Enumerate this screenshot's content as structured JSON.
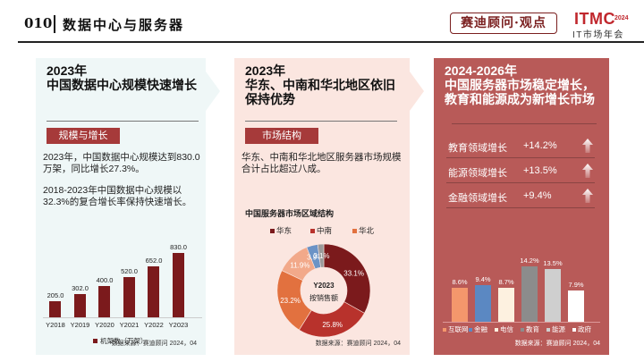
{
  "header": {
    "number": "010",
    "title": "数据中心与服务器",
    "brand": "赛迪顾问·观点",
    "logo": "ITMC",
    "logo_year": "2024",
    "logo_sub": "IT市场年会"
  },
  "panel1": {
    "title_line1": "2023年",
    "title_line2": "中国数据中心规模快速增长",
    "tag": "规模与增长",
    "para1": "2023年，中国数据中心规模达到830.0万架，同比增长27.3%。",
    "para2": "2018-2023年中国数据中心规模以32.3%的复合增长率保持快速增长。",
    "source": "数据来源：赛迪顾问 2024，04"
  },
  "panel2": {
    "title_line1": "2023年",
    "title_line2": "华东、中南和华北地区依旧",
    "title_line3": "保持优势",
    "tag": "市场结构",
    "para1": "华东、中南和华北地区服务器市场规模合计占比超过八成。",
    "chart_title": "中国服务器市场区域结构",
    "center_line1": "Y2023",
    "center_line2": "按销售额",
    "source": "数据来源：赛迪顾问 2024，04"
  },
  "panel3": {
    "title_line1": "2024-2026年",
    "title_line2": "中国服务器市场稳定增长，",
    "title_line3": "教育和能源成为新增长市场",
    "growth": [
      {
        "label": "教育领域增长",
        "value": "+14.2%",
        "icon": "arrow-up-icon"
      },
      {
        "label": "能源领域增长",
        "value": "+13.5%",
        "icon": "arrow-up-icon"
      },
      {
        "label": "金融领域增长",
        "value": "+9.4%",
        "icon": "arrow-up-icon"
      }
    ],
    "source": "数据来源：赛迪顾问 2024，04"
  },
  "chart_data": [
    {
      "type": "bar",
      "title": "",
      "categories": [
        "Y2018",
        "Y2019",
        "Y2020",
        "Y2021",
        "Y2022",
        "Y2023"
      ],
      "series": [
        {
          "name": "机架数（万架）",
          "values": [
            205.0,
            302.0,
            400.0,
            520.0,
            652.0,
            830.0
          ],
          "color": "#7b1a1c"
        }
      ],
      "labels": [
        "205.0",
        "302.0",
        "400.0",
        "520.0",
        "652.0",
        "830.0"
      ],
      "ylim": [
        0,
        900
      ],
      "legend": "bottom"
    },
    {
      "type": "pie",
      "title": "中国服务器市场区域结构",
      "legend_entries": [
        {
          "name": "华东",
          "color": "#7b1a1c"
        },
        {
          "name": "中南",
          "color": "#b8322c"
        },
        {
          "name": "华北",
          "color": "#e2713f"
        }
      ],
      "slices": [
        {
          "name": "华东",
          "value": 33.1,
          "label": "33.1%",
          "color": "#7b1a1c"
        },
        {
          "name": "中南",
          "value": 25.8,
          "label": "25.8%",
          "color": "#b8322c"
        },
        {
          "name": "华北",
          "value": 23.2,
          "label": "23.2%",
          "color": "#e2713f"
        },
        {
          "name": "",
          "value": 11.9,
          "label": "11.9%",
          "color": "#f2a98a"
        },
        {
          "name": "",
          "value": 3.9,
          "label": "3.9%",
          "color": "#6b93c6"
        },
        {
          "name": "",
          "value": 2.1,
          "label": "2.1%",
          "color": "#9a9a9a"
        }
      ],
      "donut": true,
      "legend": "top"
    },
    {
      "type": "bar",
      "title": "",
      "categories": [
        "互联网",
        "金融",
        "电信",
        "教育",
        "能源",
        "政府"
      ],
      "values": [
        8.6,
        9.4,
        8.7,
        14.2,
        13.5,
        7.9
      ],
      "labels": [
        "8.6%",
        "9.4%",
        "8.7%",
        "14.2%",
        "13.5%",
        "7.9%"
      ],
      "colors": [
        "#f4976c",
        "#5b88c2",
        "#fdf1e0",
        "#8c8c8c",
        "#cfcfcf",
        "#ffffff"
      ],
      "ylim": [
        0,
        15
      ],
      "legend": "bottom"
    }
  ]
}
